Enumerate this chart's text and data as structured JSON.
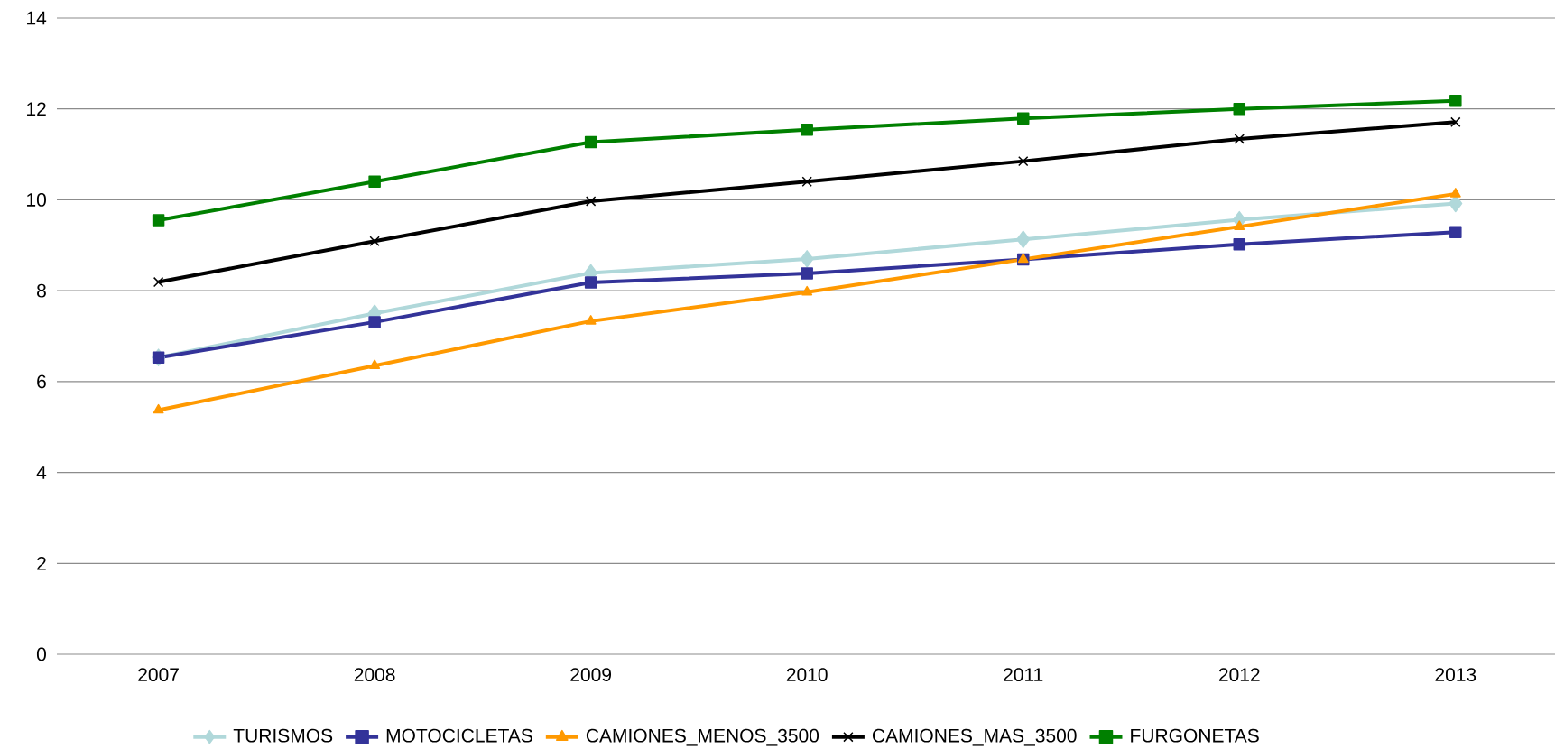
{
  "chart_data": {
    "type": "line",
    "categories": [
      "2007",
      "2008",
      "2009",
      "2010",
      "2011",
      "2012",
      "2013"
    ],
    "series": [
      {
        "name": "TURISMOS",
        "color": "#b0d8da",
        "marker": "diamond",
        "values": [
          6.53,
          7.5,
          8.39,
          8.7,
          9.13,
          9.56,
          9.92
        ]
      },
      {
        "name": "MOTOCICLETAS",
        "color": "#333399",
        "marker": "square",
        "values": [
          6.53,
          7.31,
          8.18,
          8.38,
          8.69,
          9.02,
          9.29
        ]
      },
      {
        "name": "CAMIONES_MENOS_3500",
        "color": "#ff9900",
        "marker": "triangle",
        "values": [
          5.37,
          6.35,
          7.33,
          7.97,
          8.69,
          9.41,
          10.13
        ]
      },
      {
        "name": "CAMIONES_MAS_3500",
        "color": "#000000",
        "marker": "cross",
        "values": [
          8.19,
          9.09,
          9.97,
          10.4,
          10.85,
          11.34,
          11.71
        ]
      },
      {
        "name": "FURGONETAS",
        "color": "#008000",
        "marker": "square",
        "values": [
          9.55,
          10.4,
          11.27,
          11.54,
          11.79,
          12.0,
          12.18
        ]
      }
    ],
    "ylim": [
      0,
      14
    ],
    "yticks": [
      0,
      2,
      4,
      6,
      8,
      10,
      12,
      14
    ],
    "grid": "y",
    "legend": "bottom",
    "line_style": "solid"
  }
}
